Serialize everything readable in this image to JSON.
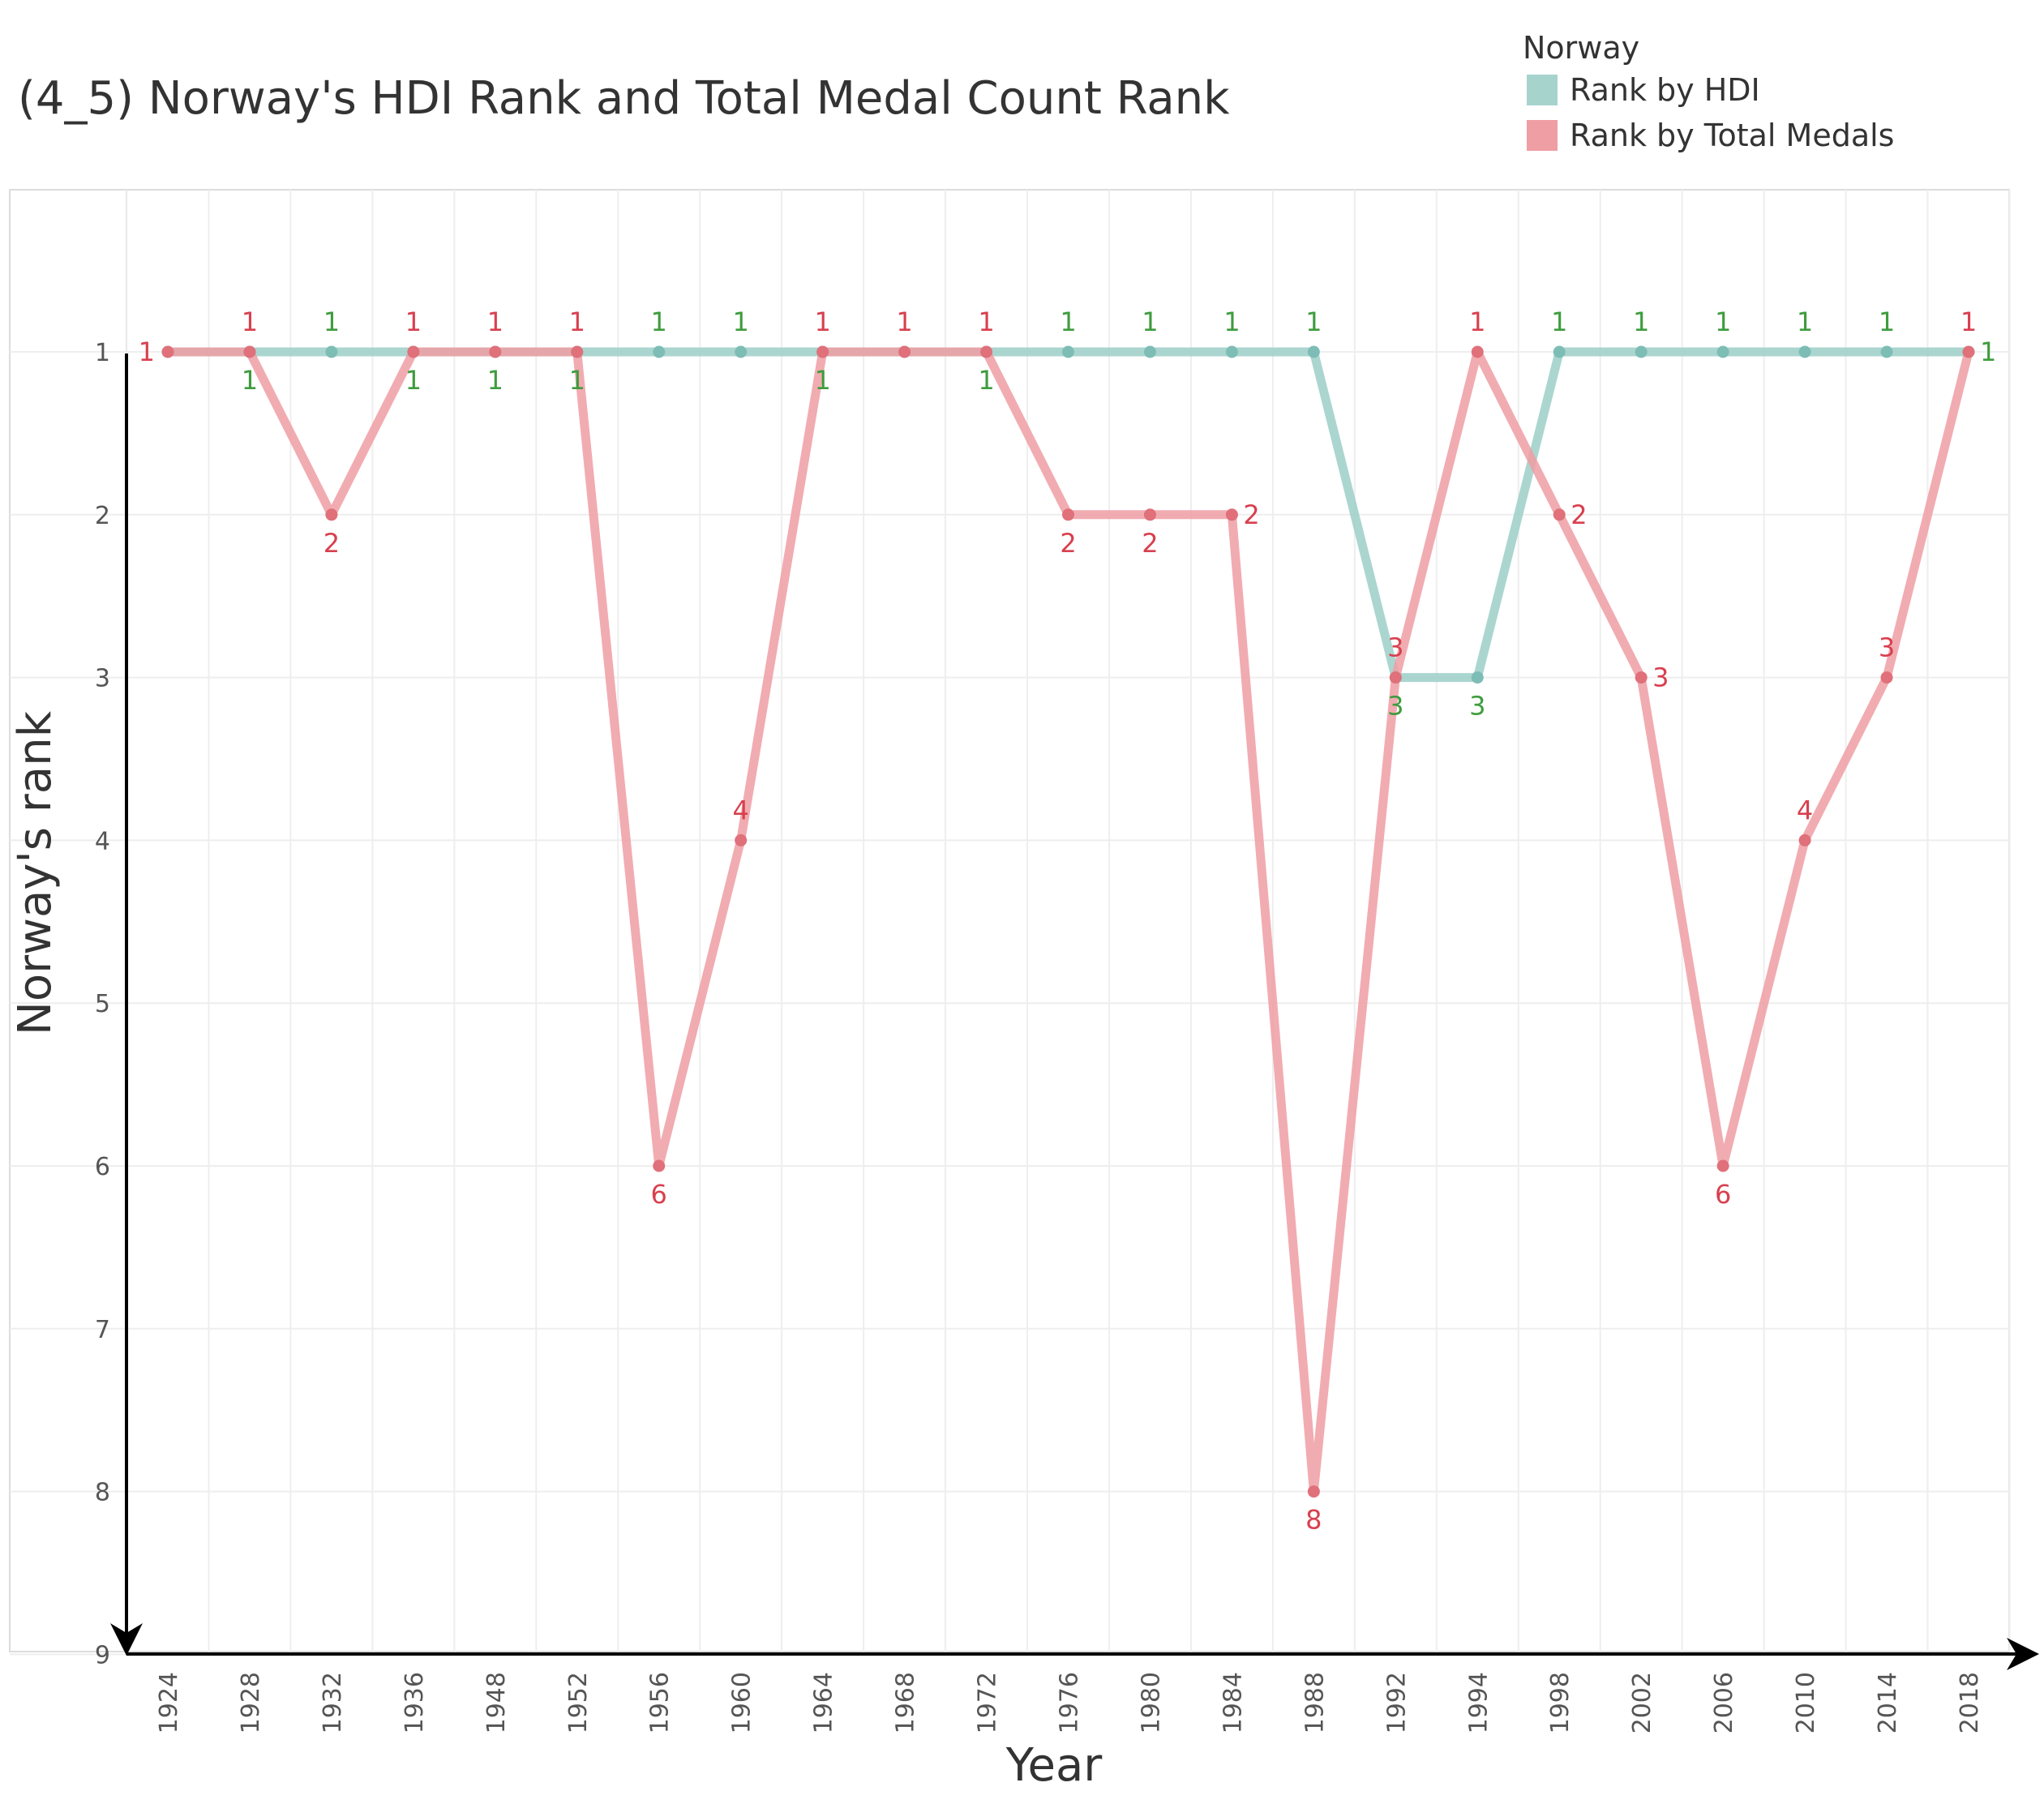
{
  "chart_data": {
    "type": "line",
    "title": "(4_5) Norway's HDI Rank and Total Medal Count Rank",
    "xlabel": "Year",
    "ylabel": "Norway's rank",
    "ylim": [
      9,
      0
    ],
    "y_ticks": [
      1,
      2,
      3,
      4,
      5,
      6,
      7,
      8,
      9
    ],
    "x": [
      "1924",
      "1928",
      "1932",
      "1936",
      "1948",
      "1952",
      "1956",
      "1960",
      "1964",
      "1968",
      "1972",
      "1976",
      "1980",
      "1984",
      "1988",
      "1992",
      "1994",
      "1998",
      "2002",
      "2006",
      "2010",
      "2014",
      "2018"
    ],
    "legend": {
      "title": "Norway",
      "position": "top-right"
    },
    "grid": true,
    "series": [
      {
        "name": "Rank by HDI",
        "color": "#9ccfc8",
        "label_color": "#3e9c3e",
        "values": [
          1,
          1,
          1,
          1,
          1,
          1,
          1,
          1,
          1,
          1,
          1,
          1,
          1,
          1,
          1,
          3,
          3,
          1,
          1,
          1,
          1,
          1,
          1
        ],
        "labels": [
          "",
          "1",
          "1",
          "1",
          "1",
          "1",
          "1",
          "1",
          "1",
          "",
          "1",
          "1",
          "1",
          "1",
          "1",
          "3",
          "3",
          "1",
          "1",
          "1",
          "1",
          "1",
          "1"
        ]
      },
      {
        "name": "Rank by Total Medals",
        "color": "#ee9ea3",
        "label_color": "#d8404e",
        "values": [
          1,
          1,
          2,
          1,
          1,
          1,
          6,
          4,
          1,
          1,
          1,
          2,
          2,
          2,
          8,
          3,
          1,
          2,
          3,
          6,
          4,
          3,
          1
        ],
        "labels": [
          "1",
          "1",
          "2",
          "1",
          "1",
          "1",
          "6",
          "4",
          "1",
          "1",
          "1",
          "2",
          "2",
          "2",
          "8",
          "3",
          "1",
          "2",
          "3",
          "6",
          "4",
          "3",
          "1"
        ]
      }
    ]
  }
}
